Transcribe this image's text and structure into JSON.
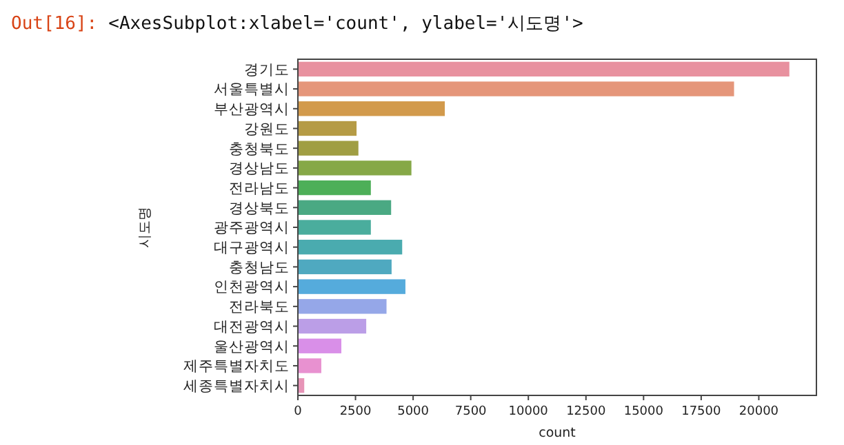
{
  "chart_data": {
    "type": "bar",
    "orientation": "horizontal",
    "xlabel": "count",
    "ylabel": "시도명",
    "annotations": [
      "Out[16]:",
      "<AxesSubplot:xlabel='count', ylabel='시도명'>"
    ],
    "categories": [
      "경기도",
      "서울특별시",
      "부산광역시",
      "강원도",
      "충청북도",
      "경상남도",
      "전라남도",
      "경상북도",
      "광주광역시",
      "대구광역시",
      "충청남도",
      "인천광역시",
      "전라북도",
      "대전광역시",
      "울산광역시",
      "제주특별자치도",
      "세종특별자치시"
    ],
    "values": [
      21350,
      18950,
      6400,
      2570,
      2650,
      4950,
      3190,
      4070,
      3190,
      4550,
      4090,
      4690,
      3870,
      2990,
      1910,
      1040,
      300
    ],
    "colors": [
      "#e8919f",
      "#e5967a",
      "#d29a4c",
      "#b59b45",
      "#a09e43",
      "#86a847",
      "#4daf58",
      "#4aa983",
      "#4aad9d",
      "#4aabaf",
      "#4fa9c0",
      "#55abdc",
      "#95a7e8",
      "#bb9ee7",
      "#d98fe8",
      "#e891d0",
      "#e794b7"
    ],
    "xlim": [
      0,
      22500
    ],
    "xticks": [
      0,
      2500,
      5000,
      7500,
      10000,
      12500,
      15000,
      17500,
      20000
    ]
  }
}
